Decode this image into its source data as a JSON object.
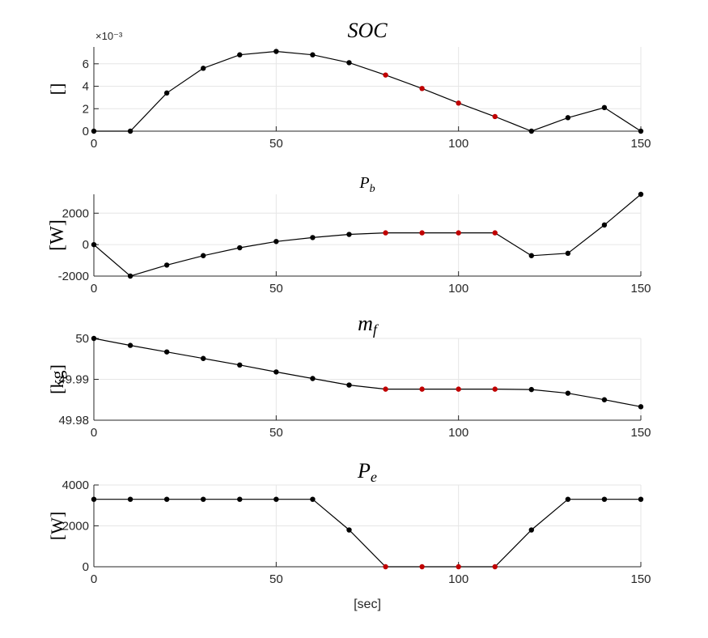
{
  "colors": {
    "line": "#000000",
    "marker_default": "#000000",
    "marker_highlight": "#c00000",
    "grid": "#e6e6e6",
    "axis": "#262626",
    "background": "#ffffff"
  },
  "chart_data": [
    {
      "type": "line",
      "title": "SOC",
      "ylabel": "[]",
      "xlabel": "",
      "y_exponent_label": "×10⁻³",
      "xlim": [
        0,
        150
      ],
      "ylim": [
        0,
        0.0075
      ],
      "xticks": [
        0,
        50,
        100,
        150
      ],
      "yticks": [
        0,
        0.002,
        0.004,
        0.006
      ],
      "ytick_labels": [
        "0",
        "2",
        "4",
        "6"
      ],
      "grid": true,
      "x": [
        0,
        10,
        20,
        30,
        40,
        50,
        60,
        70,
        80,
        90,
        100,
        110,
        120,
        130,
        140,
        150
      ],
      "y": [
        0,
        0,
        0.0034,
        0.0056,
        0.0068,
        0.0071,
        0.0068,
        0.0061,
        0.005,
        0.0038,
        0.0025,
        0.0013,
        0,
        0.0012,
        0.0021,
        0
      ],
      "highlight": [
        false,
        false,
        false,
        false,
        false,
        false,
        false,
        false,
        true,
        true,
        true,
        true,
        false,
        false,
        false,
        false
      ]
    },
    {
      "type": "line",
      "title": "P_b",
      "ylabel": "[W]",
      "xlabel": "",
      "xlim": [
        0,
        150
      ],
      "ylim": [
        -2000,
        3200
      ],
      "xticks": [
        0,
        50,
        100,
        150
      ],
      "yticks": [
        -2000,
        0,
        2000
      ],
      "ytick_labels": [
        "-2000",
        "0",
        "2000"
      ],
      "grid": true,
      "x": [
        0,
        10,
        20,
        30,
        40,
        50,
        60,
        70,
        80,
        90,
        100,
        110,
        120,
        130,
        140,
        150
      ],
      "y": [
        0,
        -2000,
        -1300,
        -700,
        -200,
        200,
        450,
        650,
        750,
        750,
        750,
        750,
        -700,
        -550,
        1250,
        3200
      ],
      "highlight": [
        false,
        false,
        false,
        false,
        false,
        false,
        false,
        false,
        true,
        true,
        true,
        true,
        false,
        false,
        false,
        false
      ]
    },
    {
      "type": "line",
      "title": "m_f",
      "ylabel": "[kg]",
      "xlabel": "",
      "xlim": [
        0,
        150
      ],
      "ylim": [
        49.98,
        50
      ],
      "xticks": [
        0,
        50,
        100,
        150
      ],
      "yticks": [
        49.98,
        49.99,
        50
      ],
      "ytick_labels": [
        "49.98",
        "49.99",
        "50"
      ],
      "grid": true,
      "x": [
        0,
        10,
        20,
        30,
        40,
        50,
        60,
        70,
        80,
        90,
        100,
        110,
        120,
        130,
        140,
        150
      ],
      "y": [
        50,
        49.9983,
        49.9967,
        49.9951,
        49.9935,
        49.9918,
        49.9902,
        49.9886,
        49.9876,
        49.9876,
        49.9876,
        49.9876,
        49.9875,
        49.9866,
        49.985,
        49.9833
      ],
      "highlight": [
        false,
        false,
        false,
        false,
        false,
        false,
        false,
        false,
        true,
        true,
        true,
        true,
        false,
        false,
        false,
        false
      ]
    },
    {
      "type": "line",
      "title": "P_e",
      "ylabel": "[W]",
      "xlabel": "[sec]",
      "xlim": [
        0,
        150
      ],
      "ylim": [
        0,
        4000
      ],
      "xticks": [
        0,
        50,
        100,
        150
      ],
      "yticks": [
        0,
        2000,
        4000
      ],
      "ytick_labels": [
        "0",
        "2000",
        "4000"
      ],
      "grid": true,
      "x": [
        0,
        10,
        20,
        30,
        40,
        50,
        60,
        70,
        80,
        90,
        100,
        110,
        120,
        130,
        140,
        150
      ],
      "y": [
        3300,
        3300,
        3300,
        3300,
        3300,
        3300,
        3300,
        1800,
        0,
        0,
        0,
        0,
        1800,
        3300,
        3300,
        3300
      ],
      "highlight": [
        false,
        false,
        false,
        false,
        false,
        false,
        false,
        false,
        true,
        true,
        true,
        true,
        false,
        false,
        false,
        false
      ]
    }
  ]
}
